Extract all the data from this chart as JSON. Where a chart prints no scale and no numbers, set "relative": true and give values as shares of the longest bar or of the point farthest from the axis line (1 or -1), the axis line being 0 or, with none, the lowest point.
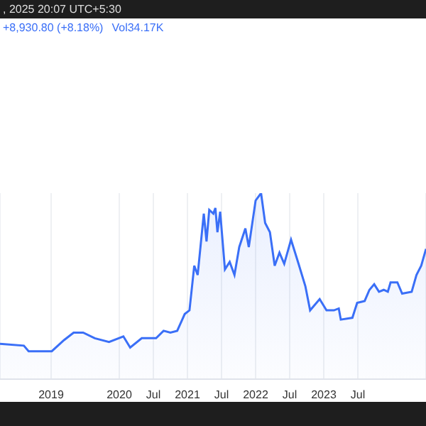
{
  "chart_data": {
    "type": "area",
    "relative": true,
    "color": "#3a6ff7",
    "grid": "x",
    "annotations": [
      ", 2025 20:07 UTC+5:30",
      "+8,930.80 (+8.18%)",
      "Vol34.17K"
    ],
    "x": [
      2018.25,
      2018.6,
      2018.67,
      2019.01,
      2019.19,
      2019.33,
      2019.47,
      2019.64,
      2019.85,
      2020.06,
      2020.16,
      2020.33,
      2020.54,
      2020.65,
      2020.75,
      2020.85,
      2020.96,
      2021.03,
      2021.1,
      2021.15,
      2021.24,
      2021.28,
      2021.32,
      2021.38,
      2021.41,
      2021.44,
      2021.48,
      2021.55,
      2021.62,
      2021.69,
      2021.76,
      2021.85,
      2021.9,
      2022.0,
      2022.08,
      2022.14,
      2022.21,
      2022.28,
      2022.35,
      2022.42,
      2022.52,
      2022.63,
      2022.73,
      2022.8,
      2022.94,
      2023.04,
      2023.15,
      2023.22,
      2023.25,
      2023.42,
      2023.49,
      2023.6,
      2023.67,
      2023.74,
      2023.81,
      2023.88,
      2023.94,
      2023.98,
      2024.08,
      2024.15,
      2024.29,
      2024.36,
      2024.43,
      2024.5
    ],
    "values": [
      0.19,
      0.18,
      0.15,
      0.15,
      0.21,
      0.25,
      0.25,
      0.22,
      0.2,
      0.23,
      0.17,
      0.22,
      0.22,
      0.26,
      0.25,
      0.26,
      0.35,
      0.37,
      0.61,
      0.56,
      0.89,
      0.74,
      0.91,
      0.89,
      0.92,
      0.79,
      0.9,
      0.59,
      0.63,
      0.56,
      0.71,
      0.81,
      0.71,
      0.96,
      1.0,
      0.84,
      0.79,
      0.61,
      0.68,
      0.62,
      0.75,
      0.62,
      0.5,
      0.37,
      0.43,
      0.37,
      0.37,
      0.38,
      0.32,
      0.33,
      0.41,
      0.42,
      0.48,
      0.51,
      0.47,
      0.48,
      0.47,
      0.52,
      0.52,
      0.46,
      0.47,
      0.56,
      0.61,
      0.7
    ],
    "xlim": [
      2018.25,
      2024.5
    ],
    "xticks": [
      {
        "value": 2019,
        "label": "2019"
      },
      {
        "value": 2020,
        "label": "2020"
      },
      {
        "value": 2020.5,
        "label": "Jul"
      },
      {
        "value": 2021,
        "label": "2021"
      },
      {
        "value": 2021.5,
        "label": "Jul"
      },
      {
        "value": 2022,
        "label": "2022"
      },
      {
        "value": 2022.5,
        "label": "Jul"
      },
      {
        "value": 2023,
        "label": "2023"
      },
      {
        "value": 2023.5,
        "label": "Jul"
      }
    ]
  }
}
